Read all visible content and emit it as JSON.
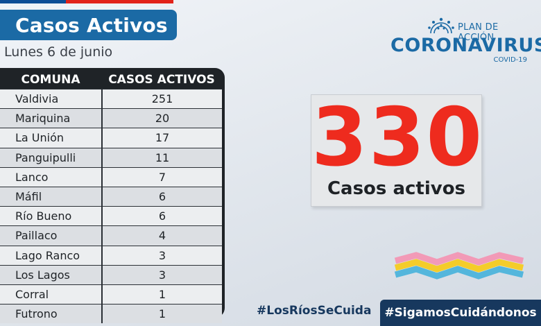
{
  "header": {
    "title": "Casos Activos",
    "date": "Lunes 6 de junio"
  },
  "table": {
    "columns": [
      "COMUNA",
      "CASOS ACTIVOS"
    ],
    "rows": [
      {
        "comuna": "Valdivia",
        "casos": "251"
      },
      {
        "comuna": "Mariquina",
        "casos": "20"
      },
      {
        "comuna": "La Unión",
        "casos": "17"
      },
      {
        "comuna": "Panguipulli",
        "casos": "11"
      },
      {
        "comuna": "Lanco",
        "casos": "7"
      },
      {
        "comuna": "Máfil",
        "casos": "6"
      },
      {
        "comuna": "Río Bueno",
        "casos": "6"
      },
      {
        "comuna": "Paillaco",
        "casos": "4"
      },
      {
        "comuna": "Lago Ranco",
        "casos": "3"
      },
      {
        "comuna": "Los Lagos",
        "casos": "3"
      },
      {
        "comuna": "Corral",
        "casos": "1"
      },
      {
        "comuna": "Futrono",
        "casos": "1"
      }
    ]
  },
  "logo": {
    "plan": "PLAN DE ACCIÓN",
    "name": "CORONAVIRUS",
    "sub": "COVID-19",
    "icon": "virus-icon"
  },
  "total": {
    "number": "330",
    "label": "Casos activos"
  },
  "footer": {
    "hashtag_1": "#LosRíosSeCuida",
    "hashtag_2": "#SigamosCuidándonos"
  },
  "colors": {
    "banner_blue": "#1b6aa5",
    "total_red": "#ee2b1e",
    "navy": "#17385e",
    "wave_pink": "#f29ab7",
    "wave_yellow": "#f4cc2a",
    "wave_blue": "#54b6dc"
  }
}
